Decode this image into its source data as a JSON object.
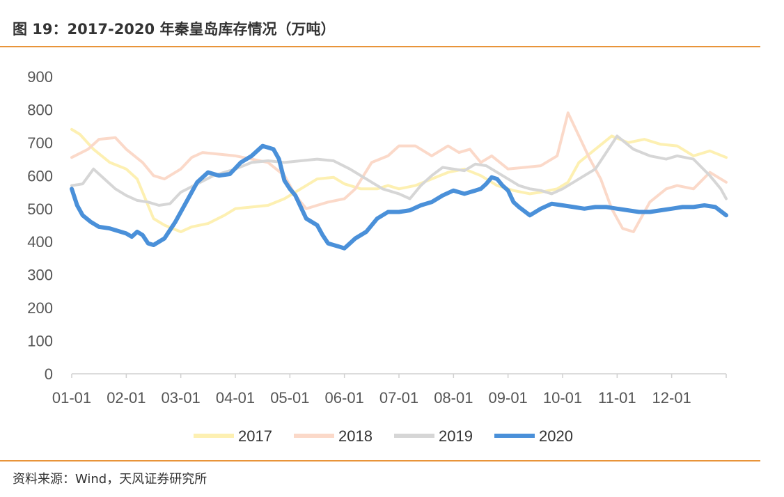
{
  "header": {
    "title": "图 19：2017-2020 年秦皇岛库存情况（万吨）"
  },
  "footer": {
    "source": "资料来源：Wind，天风证券研究所"
  },
  "chart_data": {
    "type": "line",
    "title": "图 19：2017-2020 年秦皇岛库存情况（万吨）",
    "xlabel": "",
    "ylabel": "",
    "x_ticks": [
      "01-01",
      "02-01",
      "03-01",
      "04-01",
      "05-01",
      "06-01",
      "07-01",
      "08-01",
      "09-01",
      "10-01",
      "11-01",
      "12-01"
    ],
    "y_ticks": [
      0,
      100,
      200,
      300,
      400,
      500,
      600,
      700,
      800,
      900
    ],
    "ylim": [
      0,
      900
    ],
    "xlim": [
      0,
      12
    ],
    "grid": false,
    "legend_position": "bottom",
    "series": [
      {
        "name": "2017",
        "color": "#fdf0b2",
        "width": 4,
        "x": [
          0,
          0.15,
          0.4,
          0.7,
          1.0,
          1.2,
          1.5,
          1.7,
          2.0,
          2.2,
          2.5,
          2.8,
          3.0,
          3.3,
          3.6,
          3.9,
          4.2,
          4.5,
          4.8,
          5.0,
          5.3,
          5.6,
          5.8,
          6.0,
          6.3,
          6.6,
          6.9,
          7.2,
          7.5,
          7.8,
          8.1,
          8.4,
          8.6,
          8.9,
          9.1,
          9.3,
          9.6,
          9.9,
          10.2,
          10.5,
          10.8,
          11.1,
          11.4,
          11.7,
          12.0
        ],
        "values": [
          740,
          725,
          680,
          640,
          620,
          590,
          470,
          450,
          430,
          445,
          455,
          480,
          500,
          505,
          510,
          530,
          560,
          590,
          595,
          575,
          560,
          560,
          570,
          560,
          570,
          590,
          610,
          620,
          600,
          570,
          555,
          545,
          550,
          560,
          580,
          640,
          680,
          720,
          700,
          710,
          695,
          690,
          660,
          675,
          655
        ]
      },
      {
        "name": "2018",
        "color": "#fbd9c9",
        "width": 4,
        "x": [
          0,
          0.3,
          0.5,
          0.8,
          1.0,
          1.3,
          1.5,
          1.7,
          2.0,
          2.2,
          2.4,
          2.7,
          3.0,
          3.3,
          3.6,
          3.9,
          4.1,
          4.3,
          4.5,
          4.7,
          5.0,
          5.2,
          5.5,
          5.8,
          6.0,
          6.3,
          6.6,
          6.9,
          7.1,
          7.3,
          7.5,
          7.7,
          8.0,
          8.3,
          8.6,
          8.9,
          9.1,
          9.3,
          9.5,
          9.7,
          9.9,
          10.1,
          10.3,
          10.6,
          10.9,
          11.1,
          11.4,
          11.7,
          12.0
        ],
        "values": [
          655,
          680,
          710,
          715,
          680,
          640,
          600,
          590,
          620,
          655,
          670,
          665,
          660,
          650,
          640,
          600,
          540,
          500,
          510,
          520,
          530,
          560,
          640,
          660,
          690,
          690,
          660,
          690,
          670,
          680,
          640,
          660,
          620,
          625,
          630,
          660,
          790,
          720,
          650,
          590,
          500,
          440,
          430,
          520,
          560,
          570,
          560,
          610,
          580
        ]
      },
      {
        "name": "2019",
        "color": "#d6d6d6",
        "width": 4,
        "x": [
          0,
          0.2,
          0.4,
          0.6,
          0.8,
          1.0,
          1.2,
          1.4,
          1.6,
          1.8,
          2.0,
          2.3,
          2.6,
          3.0,
          3.3,
          3.6,
          3.9,
          4.2,
          4.5,
          4.8,
          5.1,
          5.4,
          5.7,
          6.0,
          6.2,
          6.4,
          6.6,
          6.8,
          7.0,
          7.2,
          7.4,
          7.6,
          7.8,
          8.0,
          8.2,
          8.4,
          8.6,
          8.8,
          9.0,
          9.2,
          9.4,
          9.6,
          9.8,
          10.0,
          10.3,
          10.6,
          10.9,
          11.1,
          11.4,
          11.7,
          11.9,
          12.0
        ],
        "values": [
          570,
          575,
          620,
          590,
          560,
          540,
          525,
          520,
          510,
          515,
          550,
          575,
          600,
          620,
          640,
          645,
          640,
          645,
          650,
          645,
          620,
          590,
          560,
          545,
          530,
          570,
          600,
          625,
          620,
          615,
          635,
          630,
          610,
          590,
          570,
          560,
          555,
          545,
          560,
          580,
          600,
          620,
          670,
          720,
          680,
          660,
          650,
          660,
          650,
          600,
          560,
          530
        ]
      },
      {
        "name": "2020",
        "color": "#4a90d9",
        "width": 6,
        "x": [
          0,
          0.1,
          0.2,
          0.35,
          0.5,
          0.7,
          0.9,
          1.0,
          1.1,
          1.2,
          1.3,
          1.4,
          1.5,
          1.7,
          1.9,
          2.1,
          2.3,
          2.5,
          2.7,
          2.9,
          3.1,
          3.3,
          3.5,
          3.7,
          3.8,
          3.9,
          4.0,
          4.1,
          4.3,
          4.5,
          4.6,
          4.7,
          4.8,
          4.9,
          5.0,
          5.1,
          5.2,
          5.4,
          5.6,
          5.8,
          6.0,
          6.2,
          6.4,
          6.6,
          6.8,
          7.0,
          7.2,
          7.4,
          7.5,
          7.6,
          7.7,
          7.8,
          7.9,
          8.0,
          8.1,
          8.2,
          8.4,
          8.6,
          8.8,
          9.0,
          9.2,
          9.4,
          9.6,
          9.8,
          10.0,
          10.2,
          10.4,
          10.6,
          10.8,
          11.0,
          11.2,
          11.4,
          11.6,
          11.8,
          12.0
        ],
        "values": [
          560,
          510,
          480,
          460,
          445,
          440,
          430,
          425,
          415,
          430,
          420,
          395,
          390,
          410,
          460,
          520,
          580,
          610,
          600,
          605,
          640,
          660,
          690,
          680,
          650,
          585,
          560,
          540,
          470,
          450,
          420,
          395,
          390,
          385,
          380,
          395,
          410,
          430,
          470,
          490,
          490,
          495,
          510,
          520,
          540,
          555,
          545,
          555,
          560,
          575,
          595,
          590,
          570,
          555,
          520,
          505,
          480,
          500,
          515,
          510,
          505,
          500,
          505,
          505,
          500,
          495,
          490,
          490,
          495,
          500,
          505,
          505,
          510,
          505,
          480
        ]
      }
    ]
  }
}
